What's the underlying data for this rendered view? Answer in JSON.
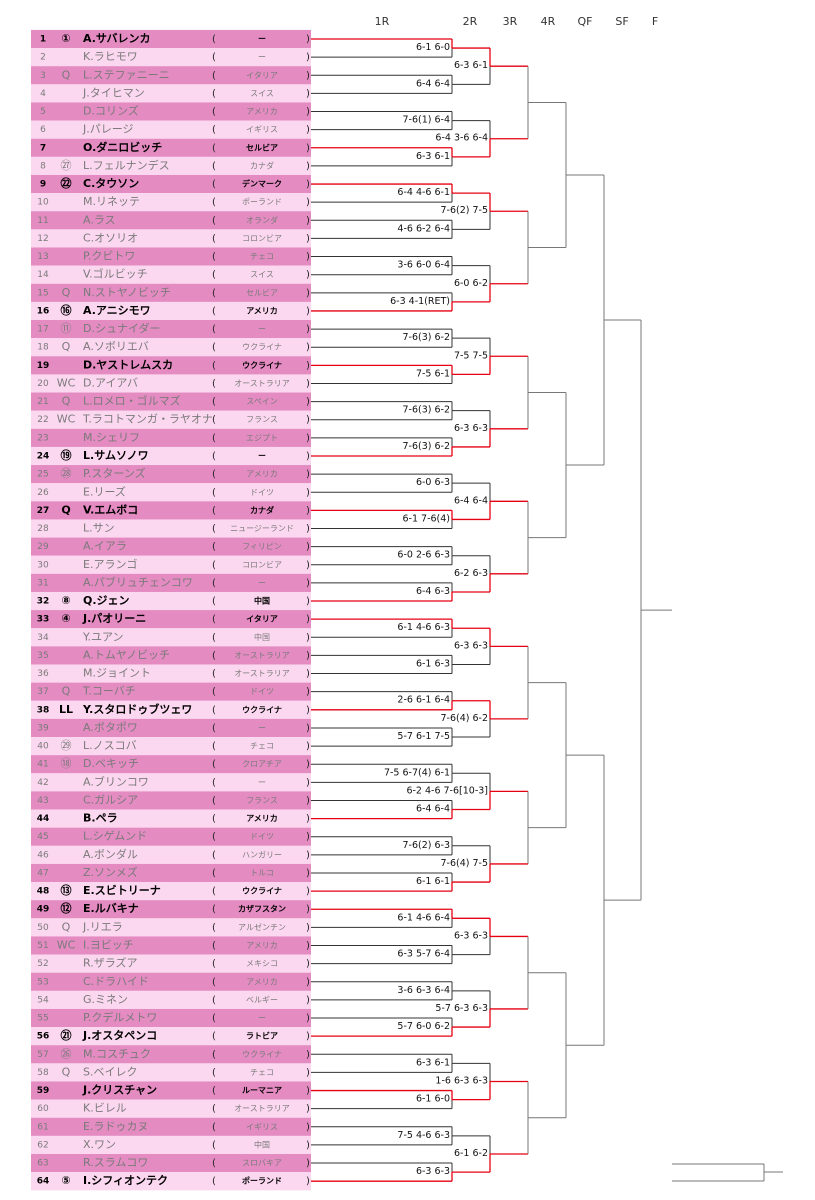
{
  "rounds": [
    "1R",
    "2R",
    "3R",
    "4R",
    "QF",
    "SF",
    "F"
  ],
  "paren_open": "(",
  "paren_close": ")",
  "players": [
    {
      "num": 1,
      "seed": "①",
      "name": "A.サバレンカ",
      "country": "ー",
      "bold": true
    },
    {
      "num": 2,
      "name": "K.ラヒモワ",
      "country": "ー"
    },
    {
      "num": 3,
      "seed": "Q",
      "name": "L.ステファニーニ",
      "country": "イタリア"
    },
    {
      "num": 4,
      "name": "J.タイヒマン",
      "country": "スイス"
    },
    {
      "num": 5,
      "name": "D.コリンズ",
      "country": "アメリカ"
    },
    {
      "num": 6,
      "name": "J.パレージ",
      "country": "イギリス"
    },
    {
      "num": 7,
      "name": "O.ダニロビッチ",
      "country": "セルビア",
      "bold": true
    },
    {
      "num": 8,
      "seed": "㉗",
      "name": "L.フェルナンデス",
      "country": "カナダ"
    },
    {
      "num": 9,
      "seed": "㉒",
      "name": "C.タウソン",
      "country": "デンマーク",
      "bold": true
    },
    {
      "num": 10,
      "name": "M.リネッテ",
      "country": "ポーランド"
    },
    {
      "num": 11,
      "name": "A.ラス",
      "country": "オランダ"
    },
    {
      "num": 12,
      "name": "C.オソリオ",
      "country": "コロンビア"
    },
    {
      "num": 13,
      "name": "P.クビトワ",
      "country": "チェコ"
    },
    {
      "num": 14,
      "name": "V.ゴルビッチ",
      "country": "スイス"
    },
    {
      "num": 15,
      "seed": "Q",
      "name": "N.ストヤノビッチ",
      "country": "セルビア"
    },
    {
      "num": 16,
      "seed": "⑯",
      "name": "A.アニシモワ",
      "country": "アメリカ",
      "bold": true
    },
    {
      "num": 17,
      "seed": "⑪",
      "name": "D.シュナイダー",
      "country": "ー"
    },
    {
      "num": 18,
      "seed": "Q",
      "name": "A.ソボリエバ",
      "country": "ウクライナ"
    },
    {
      "num": 19,
      "name": "D.ヤストレムスカ",
      "country": "ウクライナ",
      "bold": true
    },
    {
      "num": 20,
      "seed": "WC",
      "name": "D.アイアバ",
      "country": "オーストラリア"
    },
    {
      "num": 21,
      "seed": "Q",
      "name": "L.ロメロ・ゴルマズ",
      "country": "スペイン"
    },
    {
      "num": 22,
      "seed": "WC",
      "name": "T.ラコトマンガ・ラヤオナ",
      "country": "フランス"
    },
    {
      "num": 23,
      "name": "M.シェリフ",
      "country": "エジプト"
    },
    {
      "num": 24,
      "seed": "⑲",
      "name": "L.サムソノワ",
      "country": "ー",
      "bold": true
    },
    {
      "num": 25,
      "seed": "㉘",
      "name": "P.スターンズ",
      "country": "アメリカ"
    },
    {
      "num": 26,
      "name": "E.リーズ",
      "country": "ドイツ"
    },
    {
      "num": 27,
      "seed": "Q",
      "name": "V.エムボコ",
      "country": "カナダ",
      "bold": true
    },
    {
      "num": 28,
      "name": "L.サン",
      "country": "ニュージーランド"
    },
    {
      "num": 29,
      "name": "A.イアラ",
      "country": "フィリピン"
    },
    {
      "num": 30,
      "name": "E.アランゴ",
      "country": "コロンビア"
    },
    {
      "num": 31,
      "name": "A.パブリュチェンコワ",
      "country": "ー"
    },
    {
      "num": 32,
      "seed": "⑧",
      "name": "Q.ジェン",
      "country": "中国",
      "bold": true
    },
    {
      "num": 33,
      "seed": "④",
      "name": "J.パオリーニ",
      "country": "イタリア",
      "bold": true
    },
    {
      "num": 34,
      "name": "Y.ユアン",
      "country": "中国"
    },
    {
      "num": 35,
      "name": "A.トムヤノビッチ",
      "country": "オーストラリア"
    },
    {
      "num": 36,
      "name": "M.ジョイント",
      "country": "オーストラリア"
    },
    {
      "num": 37,
      "seed": "Q",
      "name": "T.コーバチ",
      "country": "ドイツ"
    },
    {
      "num": 38,
      "seed": "LL",
      "name": "Y.スタロドゥブツェワ",
      "country": "ウクライナ",
      "bold": true
    },
    {
      "num": 39,
      "name": "A.ボタポワ",
      "country": "ー"
    },
    {
      "num": 40,
      "seed": "㉙",
      "name": "L.ノスコバ",
      "country": "チェコ"
    },
    {
      "num": 41,
      "seed": "⑱",
      "name": "D.ベキッチ",
      "country": "クロアチア"
    },
    {
      "num": 42,
      "name": "A.ブリンコワ",
      "country": "ー"
    },
    {
      "num": 43,
      "name": "C.ガルシア",
      "country": "フランス"
    },
    {
      "num": 44,
      "name": "B.ペラ",
      "country": "アメリカ",
      "bold": true
    },
    {
      "num": 45,
      "name": "L.シゲムンド",
      "country": "ドイツ"
    },
    {
      "num": 46,
      "name": "A.ボンダル",
      "country": "ハンガリー"
    },
    {
      "num": 47,
      "name": "Z.ソンメズ",
      "country": "トルコ"
    },
    {
      "num": 48,
      "seed": "⑬",
      "name": "E.スビトリーナ",
      "country": "ウクライナ",
      "bold": true
    },
    {
      "num": 49,
      "seed": "⑫",
      "name": "E.ルバキナ",
      "country": "カザフスタン",
      "bold": true
    },
    {
      "num": 50,
      "seed": "Q",
      "name": "J.リエラ",
      "country": "アルゼンチン"
    },
    {
      "num": 51,
      "seed": "WC",
      "name": "I.ヨビッチ",
      "country": "アメリカ"
    },
    {
      "num": 52,
      "name": "R.ザラズア",
      "country": "メキシコ"
    },
    {
      "num": 53,
      "name": "C.ドラハイド",
      "country": "アメリカ"
    },
    {
      "num": 54,
      "name": "G.ミネン",
      "country": "ベルギー"
    },
    {
      "num": 55,
      "name": "P.クデルメトワ",
      "country": "ー"
    },
    {
      "num": 56,
      "seed": "㉑",
      "name": "J.オスタペンコ",
      "country": "ラトビア",
      "bold": true
    },
    {
      "num": 57,
      "seed": "㉖",
      "name": "M.コスチュク",
      "country": "ウクライナ"
    },
    {
      "num": 58,
      "seed": "Q",
      "name": "S.ベイレク",
      "country": "チェコ"
    },
    {
      "num": 59,
      "name": "J.クリスチャン",
      "country": "ルーマニア",
      "bold": true
    },
    {
      "num": 60,
      "name": "K.ビレル",
      "country": "オーストラリア"
    },
    {
      "num": 61,
      "name": "E.ラドゥカヌ",
      "country": "イギリス"
    },
    {
      "num": 62,
      "name": "X.ワン",
      "country": "中国"
    },
    {
      "num": 63,
      "name": "R.スラムコワ",
      "country": "スロバキア"
    },
    {
      "num": 64,
      "seed": "⑤",
      "name": "I.シフィオンテク",
      "country": "ポーランド",
      "bold": true
    }
  ],
  "round1_scores": [
    "6-1 6-0",
    "6-4 6-4",
    "7-6(1) 6-4",
    "6-3 6-1",
    "6-4 4-6 6-1",
    "4-6 6-2 6-4",
    "3-6 6-0 6-4",
    "6-3 4-1(RET)",
    "7-6(3) 6-2",
    "7-5 6-1",
    "7-6(3) 6-2",
    "7-6(3) 6-2",
    "6-0 6-3",
    "6-1 7-6(4)",
    "6-0 2-6 6-3",
    "6-4 6-3",
    "6-1 4-6 6-3",
    "6-1 6-3",
    "2-6 6-1 6-4",
    "5-7 6-1 7-5",
    "7-5 6-7(4) 6-1",
    "6-4 6-4",
    "7-6(2) 6-3",
    "6-1 6-1",
    "6-1 4-6 6-4",
    "6-3 5-7 6-4",
    "3-6 6-3 6-4",
    "5-7 6-0 6-2",
    "6-3 6-1",
    "6-1 6-0",
    "7-5 4-6 6-3",
    "6-3 6-3"
  ],
  "round2_scores": [
    "6-3 6-1",
    "6-4 3-6 6-4",
    "7-6(2) 7-5",
    "6-0 6-2",
    "7-5 7-5",
    "6-3 6-3",
    "6-4 6-4",
    "6-2 6-3",
    "6-3 6-3",
    "7-6(4) 6-2",
    "6-2 4-6 7-6[10-3]",
    "7-6(4) 7-5",
    "6-3 6-3",
    "5-7 6-3 6-3",
    "1-6 6-3 6-3",
    "6-1 6-2"
  ]
}
